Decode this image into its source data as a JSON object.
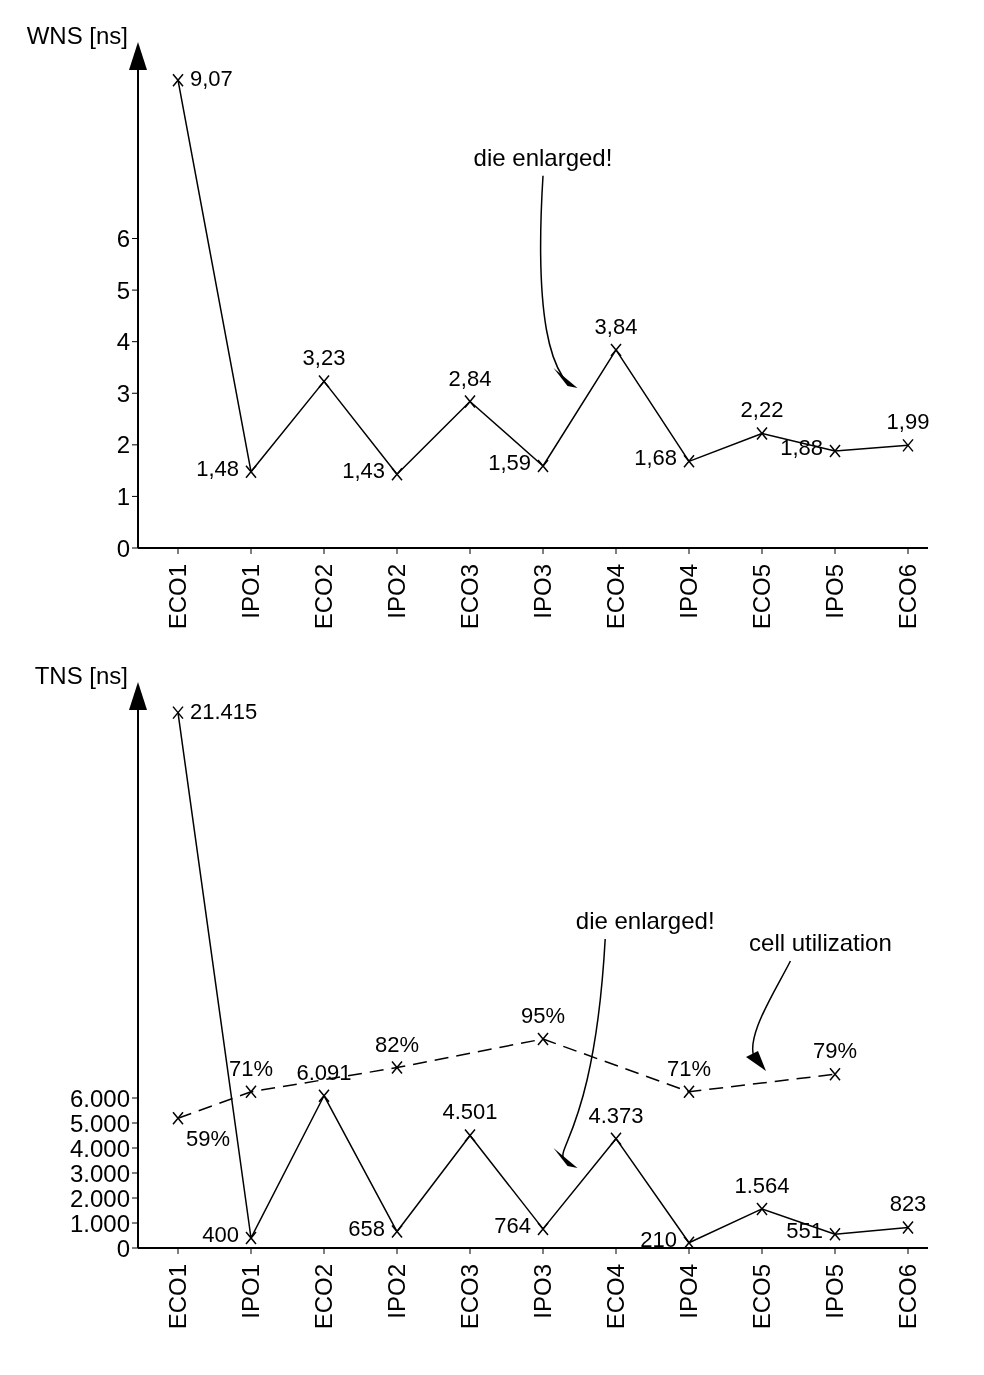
{
  "chart_data": [
    {
      "type": "line",
      "ylabel": "WNS [ns]",
      "categories": [
        "ECO1",
        "IPO1",
        "ECO2",
        "IPO2",
        "ECO3",
        "IPO3",
        "ECO4",
        "IPO4",
        "ECO5",
        "IPO5",
        "ECO6"
      ],
      "series": [
        {
          "color": "#000000",
          "line_style": "solid",
          "values": [
            9.07,
            1.48,
            3.23,
            1.43,
            2.84,
            1.59,
            3.84,
            1.68,
            2.22,
            1.88,
            1.99
          ],
          "value_labels": [
            "9,07",
            "1,48",
            "3,23",
            "1,43",
            "2,84",
            "1,59",
            "3,84",
            "1,68",
            "2,22",
            "1,88",
            "1,99"
          ]
        }
      ],
      "ylim": [
        0,
        9.5
      ],
      "yticks": [
        0,
        1,
        2,
        3,
        4,
        5,
        6
      ],
      "marker": "cross",
      "annotations": [
        "die enlarged!"
      ]
    },
    {
      "type": "line",
      "ylabel": "TNS [ns]",
      "categories": [
        "ECO1",
        "IPO1",
        "ECO2",
        "IPO2",
        "ECO3",
        "IPO3",
        "ECO4",
        "IPO4",
        "ECO5",
        "IPO5",
        "ECO6"
      ],
      "series": [
        {
          "color": "#000000",
          "line_style": "solid",
          "values": [
            21415,
            400,
            6091,
            658,
            4501,
            764,
            4373,
            210,
            1564,
            551,
            823
          ],
          "value_labels": [
            "21.415",
            "400",
            "6.091",
            "658",
            "4.501",
            "764",
            "4.373",
            "210",
            "1.564",
            "551",
            "823"
          ]
        },
        {
          "name": "cell utilization",
          "axis": "y2",
          "color": "#000000",
          "line_style": "dashed",
          "values": [
            59,
            71,
            null,
            82,
            null,
            95,
            null,
            71,
            null,
            79,
            null
          ],
          "value_labels": [
            "59%",
            "71%",
            null,
            "82%",
            null,
            "95%",
            null,
            "71%",
            null,
            "79%",
            null
          ]
        }
      ],
      "ylim": [
        0,
        22000
      ],
      "yticks": [
        0,
        {
          "value": 1000,
          "label": "1.000"
        },
        {
          "value": 2000,
          "label": "2.000"
        },
        {
          "value": 3000,
          "label": "3.000"
        },
        {
          "value": 4000,
          "label": "4.000"
        },
        {
          "value": 5000,
          "label": "5.000"
        },
        {
          "value": 6000,
          "label": "6.000"
        }
      ],
      "y2lim": [
        0,
        250
      ],
      "marker": "cross",
      "annotations": [
        "die enlarged!"
      ]
    }
  ]
}
